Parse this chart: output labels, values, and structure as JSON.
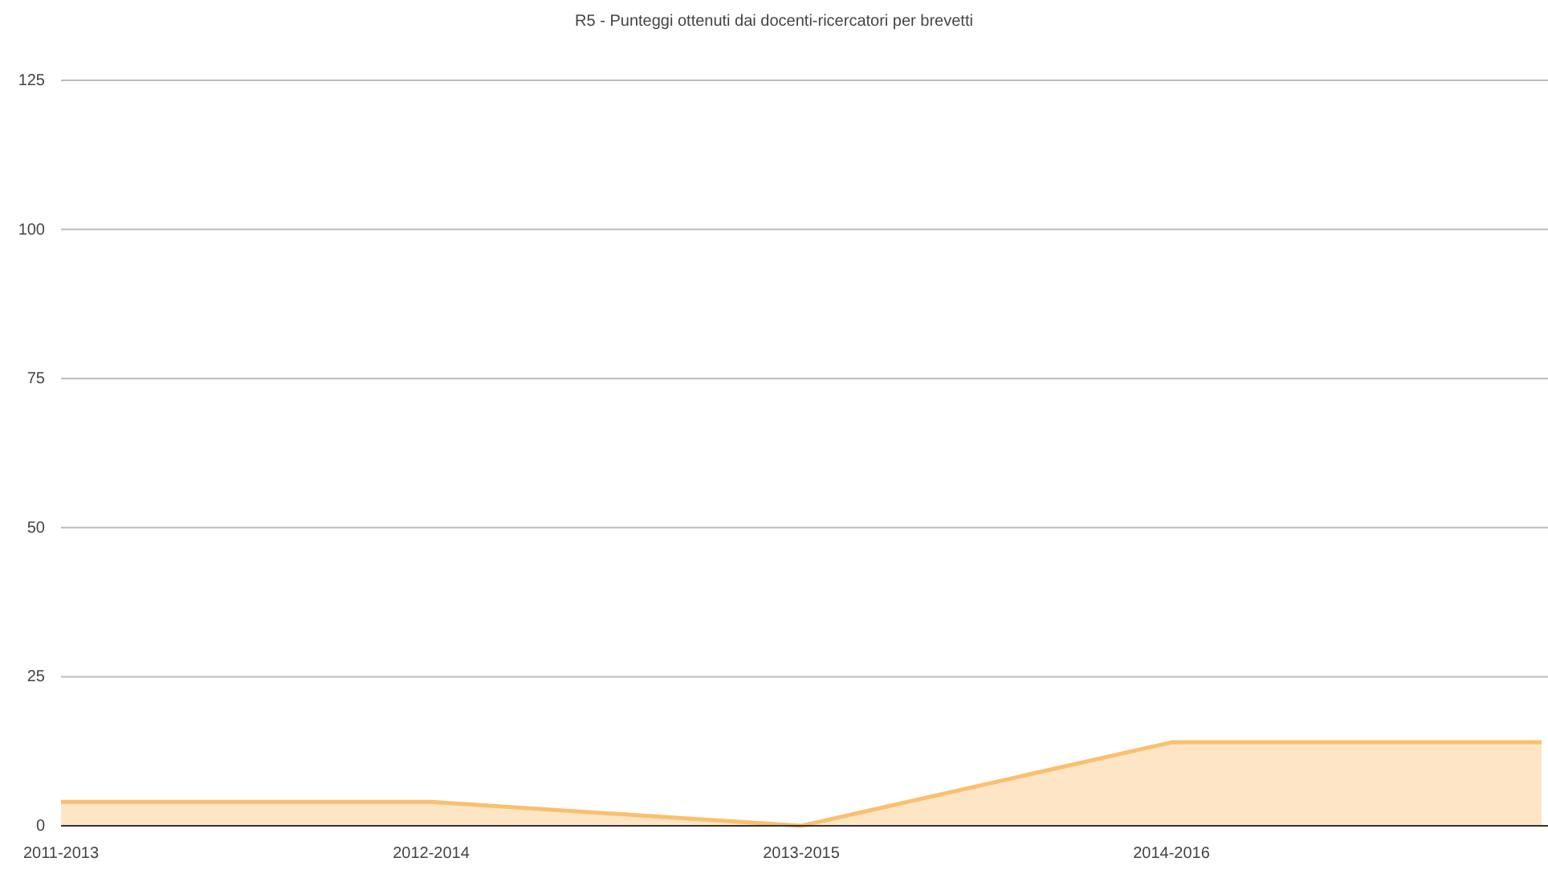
{
  "chart_data": {
    "type": "area",
    "title": "R5 - Punteggi ottenuti dai docenti-ricercatori per brevetti",
    "categories": [
      "2011-2013",
      "2012-2014",
      "2013-2015",
      "2014-2016",
      null
    ],
    "series": [
      {
        "color": "#fbbf6e",
        "values": [
          4,
          4,
          0,
          14,
          14
        ]
      }
    ],
    "ylim": [
      0,
      125
    ],
    "yticks": [
      0,
      25,
      50,
      75,
      100,
      125
    ],
    "grid": "y"
  }
}
